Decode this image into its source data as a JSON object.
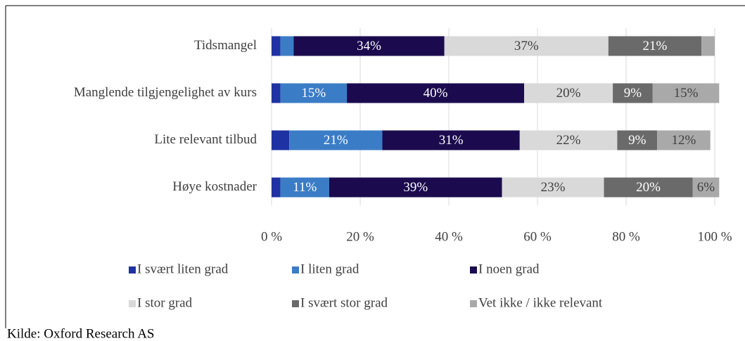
{
  "chart_data": {
    "type": "stacked_bar_horizontal",
    "categories": [
      "Tidsmangel",
      "Manglende tilgjengelighet av kurs",
      "Lite relevant tilbud",
      "Høye kostnader"
    ],
    "series": [
      {
        "name": "I svært liten grad",
        "color": "#1f32a3",
        "values": [
          2,
          2,
          4,
          2
        ],
        "value_labels": [
          null,
          null,
          null,
          null
        ]
      },
      {
        "name": "I liten grad",
        "color": "#3b7cc6",
        "values": [
          3,
          15,
          21,
          11
        ],
        "value_labels": [
          null,
          "15%",
          "21%",
          "11%"
        ]
      },
      {
        "name": "I noen grad",
        "color": "#1b0b4e",
        "values": [
          34,
          40,
          31,
          39
        ],
        "value_labels": [
          "34%",
          "40%",
          "31%",
          "39%"
        ]
      },
      {
        "name": "I stor grad",
        "color": "#d9d9d9",
        "values": [
          37,
          20,
          22,
          23
        ],
        "value_labels": [
          "37%",
          "20%",
          "22%",
          "23%"
        ]
      },
      {
        "name": "I svært stor grad",
        "color": "#6a6a6a",
        "values": [
          21,
          9,
          9,
          20
        ],
        "value_labels": [
          "21%",
          "9%",
          "9%",
          "20%"
        ]
      },
      {
        "name": "Vet ikke / ikke relevant",
        "color": "#a9a9a9",
        "values": [
          3,
          15,
          12,
          6
        ],
        "value_labels": [
          null,
          "15%",
          "12%",
          "6%"
        ]
      }
    ],
    "xlim": [
      0,
      100
    ],
    "xticks": [
      {
        "value": 0,
        "label": "0 %"
      },
      {
        "value": 20,
        "label": "20 %"
      },
      {
        "value": 40,
        "label": "40 %"
      },
      {
        "value": 60,
        "label": "60 %"
      },
      {
        "value": 80,
        "label": "80 %"
      },
      {
        "value": 100,
        "label": "100 %"
      }
    ],
    "grid": true,
    "legend": "bottom",
    "source": "Kilde: Oxford Research AS"
  }
}
